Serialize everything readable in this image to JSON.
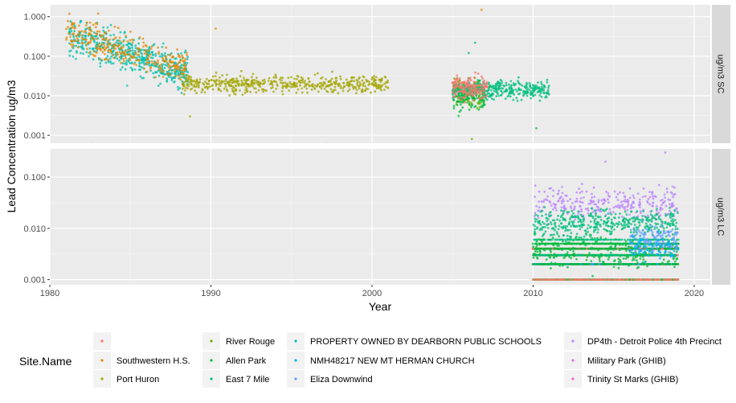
{
  "chart_data": {
    "type": "scatter",
    "xlabel": "Year",
    "ylabel": "Lead Concentration ug/m3",
    "xlim": [
      1980,
      2021
    ],
    "x_ticks": [
      "1980",
      "1990",
      "2000",
      "2010",
      "2020"
    ],
    "y_scale": "log",
    "grid": true,
    "legend_position": "bottom",
    "legend_title": "Site.Name",
    "panels": [
      {
        "strip_label": "ug/m3 SC",
        "ylim_log10": [
          -3.2,
          0.3
        ],
        "y_ticks": [
          "0.001",
          "0.010",
          "0.100",
          "1.000"
        ],
        "clouds": [
          {
            "site": 6,
            "x": [
              1981.2,
              1988.6
            ],
            "log_center": -0.85,
            "spread": 0.45,
            "n": 520,
            "points": [
              [
                1984.8,
                0.018
              ],
              [
                1982.6,
                0.0006
              ]
            ]
          },
          {
            "site": 1,
            "x": [
              1981.0,
              1988.6
            ],
            "log_center": -0.75,
            "spread": 0.4,
            "n": 300,
            "points": [
              [
                1983.0,
                1.2
              ],
              [
                1990.3,
                0.5
              ],
              [
                2006.8,
                1.5
              ]
            ]
          },
          {
            "site": 2,
            "x": [
              1988.2,
              2001.0
            ],
            "log_center": -1.7,
            "spread": 0.22,
            "n": 520,
            "points": [
              [
                1988.7,
                0.003
              ],
              [
                1997.2,
                0.0006
              ]
            ]
          },
          {
            "site": 3,
            "x": [
              2005.0,
              2007.0
            ],
            "log_center": -1.9,
            "spread": 0.35,
            "n": 130,
            "points": [
              [
                2006.2,
                0.0008
              ]
            ]
          },
          {
            "site": 4,
            "x": [
              2005.0,
              2007.0
            ],
            "log_center": -2.05,
            "spread": 0.35,
            "n": 120,
            "points": [
              [
                2010.2,
                0.0015
              ]
            ]
          },
          {
            "site": 5,
            "x": [
              2005.0,
              2011.0
            ],
            "log_center": -1.85,
            "spread": 0.22,
            "n": 360,
            "points": [
              [
                2006.4,
                0.22
              ],
              [
                2006.0,
                0.12
              ]
            ]
          },
          {
            "site": 0,
            "x": [
              2005.0,
              2007.2
            ],
            "log_center": -1.8,
            "spread": 0.28,
            "n": 160,
            "points": []
          }
        ]
      },
      {
        "strip_label": "ug/m3 LC",
        "ylim_log10": [
          -3.1,
          -0.45
        ],
        "y_ticks": [
          "0.001",
          "0.010",
          "0.100"
        ],
        "clouds": [
          {
            "site": 9,
            "x": [
              2010.0,
              2019.0
            ],
            "log_center": -1.5,
            "spread": 0.32,
            "n": 280,
            "points": [
              [
                2017.8,
                0.4
              ],
              [
                2018.2,
                0.3
              ],
              [
                2014.5,
                0.2
              ]
            ]
          },
          {
            "site": 5,
            "x": [
              2010.0,
              2019.0
            ],
            "log_center": -1.9,
            "spread": 0.28,
            "n": 420,
            "points": []
          },
          {
            "site": 4,
            "x": [
              2010.0,
              2019.0
            ],
            "log_center": -2.45,
            "spread": 0.3,
            "n": 220,
            "points": []
          },
          {
            "site": 8,
            "x": [
              2016.0,
              2019.0
            ],
            "log_center": -2.2,
            "spread": 0.25,
            "n": 120,
            "points": []
          },
          {
            "site": 7,
            "x": [
              2016.0,
              2019.0
            ],
            "log_center": -2.4,
            "spread": 0.25,
            "n": 80,
            "points": []
          }
        ],
        "bands": [
          {
            "y": 0.001,
            "sites": [
              3,
              4,
              0
            ]
          },
          {
            "y": 0.002,
            "sites": [
              3,
              0,
              7,
              4
            ]
          },
          {
            "y": 0.003,
            "sites": [
              0,
              4,
              5
            ]
          },
          {
            "y": 0.004,
            "sites": [
              5,
              0,
              4
            ]
          },
          {
            "y": 0.005,
            "sites": [
              5,
              4
            ]
          },
          {
            "y": 0.006,
            "sites": [
              5
            ]
          }
        ]
      }
    ],
    "series": [
      {
        "name": "",
        "color": "#F8766D"
      },
      {
        "name": "Southwestern H.S.",
        "color": "#E58700"
      },
      {
        "name": "Port Huron",
        "color": "#A3A500"
      },
      {
        "name": "River Rouge",
        "color": "#6BB100"
      },
      {
        "name": "Allen Park",
        "color": "#00BA38"
      },
      {
        "name": "East 7 Mile",
        "color": "#00BF7D"
      },
      {
        "name": "PROPERTY OWNED BY DEARBORN PUBLIC SCHOOLS",
        "color": "#00C0AF"
      },
      {
        "name": "NMH48217 NEW MT HERMAN CHURCH",
        "color": "#00B0F6"
      },
      {
        "name": "Eliza Downwind",
        "color": "#619CFF"
      },
      {
        "name": "DP4th - Detroit Police 4th Precinct",
        "color": "#B983FF"
      },
      {
        "name": "Military Park (GHIB)",
        "color": "#E76BF3"
      },
      {
        "name": "Trinity St Marks (GHIB)",
        "color": "#FD61D1"
      }
    ]
  }
}
